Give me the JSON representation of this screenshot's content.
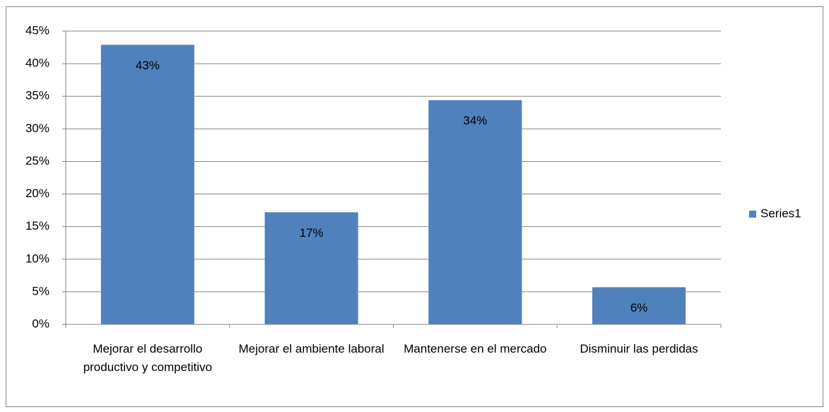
{
  "chart_data": {
    "type": "bar",
    "categories": [
      "Mejorar el desarrollo productivo y competitivo",
      "Mejorar el ambiente laboral",
      "Mantenerse en el mercado",
      "Disminuir las perdidas"
    ],
    "series": [
      {
        "name": "Series1",
        "color": "#4f81bd",
        "values": [
          42.9,
          17.2,
          34.4,
          5.7
        ],
        "value_labels": [
          "43%",
          "17%",
          "34%",
          "6%"
        ]
      }
    ],
    "ylim": [
      0,
      45
    ],
    "yticks": [
      {
        "value": 0,
        "label": "0%"
      },
      {
        "value": 5,
        "label": "5%"
      },
      {
        "value": 10,
        "label": "10%"
      },
      {
        "value": 15,
        "label": "15%"
      },
      {
        "value": 20,
        "label": "20%"
      },
      {
        "value": 25,
        "label": "25%"
      },
      {
        "value": 30,
        "label": "30%"
      },
      {
        "value": 35,
        "label": "35%"
      },
      {
        "value": 40,
        "label": "40%"
      },
      {
        "value": 45,
        "label": "45%"
      }
    ],
    "grid": true,
    "legend": "right"
  }
}
